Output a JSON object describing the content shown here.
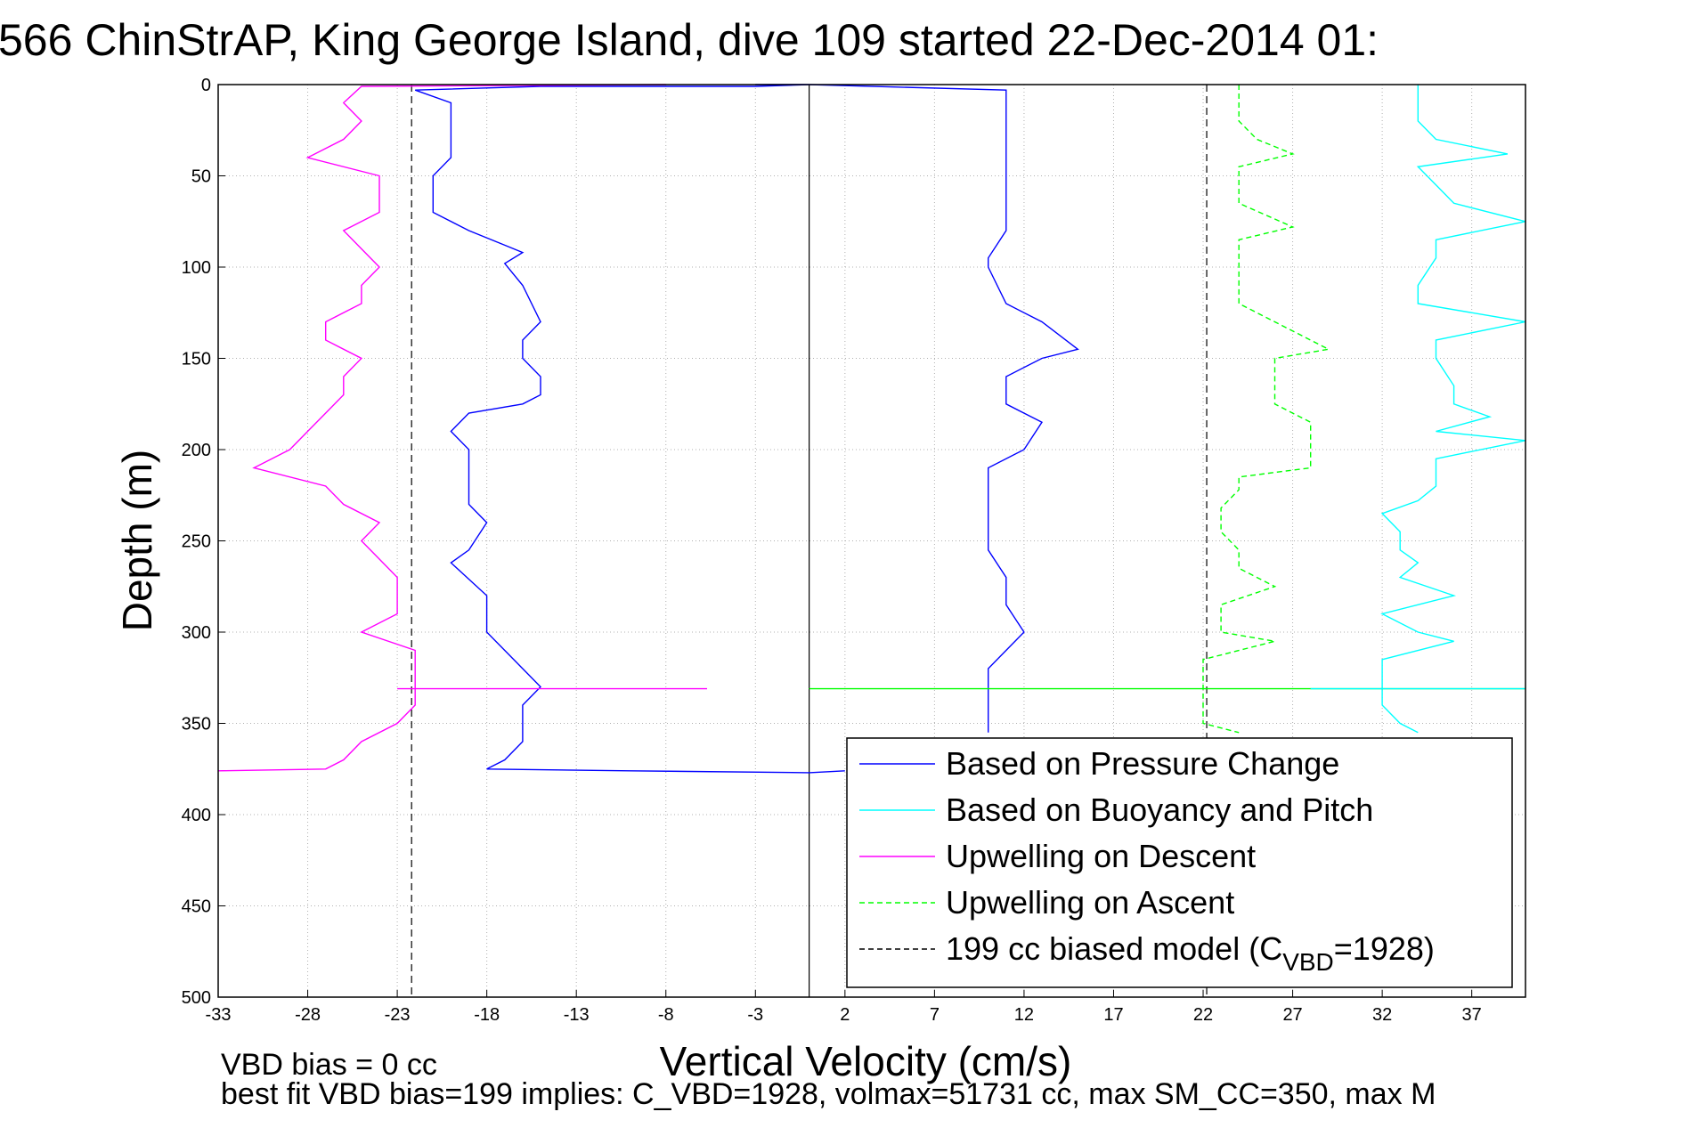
{
  "chart_data": {
    "type": "line",
    "title": "566 ChinStrAP, King George Island, dive 109 started 22-Dec-2014 01:",
    "xlabel": "Vertical Velocity (cm/s)",
    "ylabel": "Depth (m)",
    "xlim": [
      -33,
      40
    ],
    "ylim": [
      0,
      500
    ],
    "y_reversed": true,
    "grid": true,
    "x_ticks": [
      -33,
      -28,
      -23,
      -18,
      -13,
      -8,
      -3,
      2,
      7,
      12,
      17,
      22,
      27,
      32,
      37
    ],
    "y_ticks": [
      0,
      50,
      100,
      150,
      200,
      250,
      300,
      350,
      400,
      450,
      500
    ],
    "footer": {
      "line1": "VBD bias = 0 cc",
      "line2": "best fit VBD bias=199 implies: C_VBD=1928, volmax=51731 cc, max SM_CC=350, max M"
    },
    "legend": {
      "position": "bottom-right",
      "entries": [
        {
          "label": "Based on Pressure Change",
          "color": "#0000ff",
          "dash": "solid"
        },
        {
          "label": "Based on Buoyancy and Pitch",
          "color": "#00ffff",
          "dash": "solid"
        },
        {
          "label": "Upwelling on Descent",
          "color": "#ff00ff",
          "dash": "solid"
        },
        {
          "label": "Upwelling on Ascent",
          "color": "#00ff00",
          "dash": "dashed"
        },
        {
          "label": "199 cc biased model (C",
          "sub": "VBD",
          "suffix": "=1928)",
          "color": "#000000",
          "dash": "dashed"
        }
      ]
    },
    "reference_lines": [
      {
        "x": -22.2,
        "dash": "dashed",
        "color": "#000000"
      },
      {
        "x": 22.2,
        "dash": "dashed",
        "color": "#000000"
      },
      {
        "x": 0,
        "dash": "solid",
        "color": "#000000"
      }
    ],
    "series": [
      {
        "name": "Based on Pressure Change",
        "color": "#0000ff",
        "dash": "solid",
        "points": [
          [
            -3,
            0
          ],
          [
            0,
            0
          ],
          [
            -3,
            1
          ],
          [
            -15,
            1
          ],
          [
            -22,
            3
          ],
          [
            -20,
            10
          ],
          [
            -20,
            20
          ],
          [
            -20,
            30
          ],
          [
            -20,
            40
          ],
          [
            -21,
            50
          ],
          [
            -21,
            60
          ],
          [
            -21,
            70
          ],
          [
            -19,
            80
          ],
          [
            -17,
            88
          ],
          [
            -16,
            92
          ],
          [
            -17,
            98
          ],
          [
            -16,
            110
          ],
          [
            -15,
            130
          ],
          [
            -16,
            140
          ],
          [
            -16,
            150
          ],
          [
            -15,
            160
          ],
          [
            -15,
            170
          ],
          [
            -16,
            175
          ],
          [
            -19,
            180
          ],
          [
            -20,
            190
          ],
          [
            -19,
            200
          ],
          [
            -19,
            215
          ],
          [
            -19,
            230
          ],
          [
            -18,
            240
          ],
          [
            -19,
            255
          ],
          [
            -20,
            262
          ],
          [
            -18,
            280
          ],
          [
            -18,
            300
          ],
          [
            -16,
            320
          ],
          [
            -15,
            330
          ],
          [
            -16,
            340
          ],
          [
            -16,
            350
          ],
          [
            -16,
            360
          ],
          [
            -17,
            370
          ],
          [
            -18,
            375
          ],
          [
            -10,
            376
          ],
          [
            0,
            377
          ],
          [
            2,
            376
          ]
        ],
        "points_2": [
          [
            0,
            0
          ],
          [
            0,
            0
          ],
          [
            11,
            3
          ],
          [
            11,
            20
          ],
          [
            11,
            40
          ],
          [
            11,
            60
          ],
          [
            11,
            80
          ],
          [
            10,
            95
          ],
          [
            10,
            100
          ],
          [
            11,
            120
          ],
          [
            13,
            130
          ],
          [
            15,
            145
          ],
          [
            13,
            150
          ],
          [
            11,
            160
          ],
          [
            11,
            175
          ],
          [
            13,
            185
          ],
          [
            12,
            200
          ],
          [
            10,
            210
          ],
          [
            10,
            225
          ],
          [
            10,
            240
          ],
          [
            10,
            255
          ],
          [
            11,
            270
          ],
          [
            11,
            285
          ],
          [
            12,
            300
          ],
          [
            11,
            310
          ],
          [
            10,
            320
          ],
          [
            10,
            340
          ],
          [
            10,
            355
          ]
        ]
      },
      {
        "name": "Based on Buoyancy and Pitch",
        "color": "#00ffff",
        "dash": "solid",
        "points": [
          [
            34,
            0
          ],
          [
            34,
            10
          ],
          [
            34,
            20
          ],
          [
            35,
            30
          ],
          [
            39,
            38
          ],
          [
            34,
            45
          ],
          [
            35,
            55
          ],
          [
            36,
            65
          ],
          [
            40,
            75
          ],
          [
            35,
            85
          ],
          [
            35,
            95
          ],
          [
            34,
            110
          ],
          [
            34,
            120
          ],
          [
            40,
            130
          ],
          [
            35,
            140
          ],
          [
            35,
            150
          ],
          [
            36,
            165
          ],
          [
            36,
            175
          ],
          [
            38,
            182
          ],
          [
            35,
            190
          ],
          [
            40,
            195
          ],
          [
            35,
            205
          ],
          [
            35,
            212
          ],
          [
            35,
            220
          ],
          [
            34,
            228
          ],
          [
            32,
            235
          ],
          [
            33,
            245
          ],
          [
            33,
            255
          ],
          [
            34,
            262
          ],
          [
            33,
            270
          ],
          [
            36,
            280
          ],
          [
            32,
            290
          ],
          [
            34,
            300
          ],
          [
            36,
            305
          ],
          [
            32,
            315
          ],
          [
            32,
            320
          ],
          [
            32,
            330
          ],
          [
            32,
            340
          ],
          [
            33,
            350
          ],
          [
            34,
            355
          ]
        ]
      },
      {
        "name": "Upwelling on Descent",
        "color": "#ff00ff",
        "dash": "solid",
        "points": [
          [
            -8,
            0
          ],
          [
            -25,
            1
          ],
          [
            -26,
            10
          ],
          [
            -25,
            20
          ],
          [
            -26,
            30
          ],
          [
            -28,
            40
          ],
          [
            -24,
            50
          ],
          [
            -24,
            60
          ],
          [
            -24,
            70
          ],
          [
            -26,
            80
          ],
          [
            -25,
            90
          ],
          [
            -24,
            100
          ],
          [
            -25,
            110
          ],
          [
            -25,
            120
          ],
          [
            -27,
            130
          ],
          [
            -27,
            140
          ],
          [
            -25,
            150
          ],
          [
            -26,
            160
          ],
          [
            -26,
            170
          ],
          [
            -27,
            180
          ],
          [
            -28,
            190
          ],
          [
            -29,
            200
          ],
          [
            -31,
            210
          ],
          [
            -27,
            220
          ],
          [
            -26,
            230
          ],
          [
            -24,
            240
          ],
          [
            -25,
            250
          ],
          [
            -24,
            260
          ],
          [
            -23,
            270
          ],
          [
            -23,
            280
          ],
          [
            -23,
            290
          ],
          [
            -25,
            300
          ],
          [
            -22,
            310
          ],
          [
            -22,
            320
          ],
          [
            -22,
            330
          ],
          [
            -22,
            340
          ],
          [
            -23,
            350
          ],
          [
            -25,
            360
          ],
          [
            -26,
            370
          ],
          [
            -27,
            375
          ],
          [
            -33,
            376
          ]
        ]
      },
      {
        "name": "Upwelling on Ascent",
        "color": "#00ff00",
        "dash": "dashed",
        "points": [
          [
            24,
            0
          ],
          [
            24,
            10
          ],
          [
            24,
            20
          ],
          [
            25,
            30
          ],
          [
            27,
            38
          ],
          [
            24,
            45
          ],
          [
            24,
            55
          ],
          [
            24,
            65
          ],
          [
            27,
            78
          ],
          [
            24,
            85
          ],
          [
            24,
            95
          ],
          [
            24,
            110
          ],
          [
            24,
            120
          ],
          [
            26,
            130
          ],
          [
            29,
            145
          ],
          [
            26,
            150
          ],
          [
            26,
            165
          ],
          [
            26,
            175
          ],
          [
            28,
            185
          ],
          [
            28,
            200
          ],
          [
            28,
            210
          ],
          [
            24,
            215
          ],
          [
            24,
            222
          ],
          [
            23,
            232
          ],
          [
            23,
            245
          ],
          [
            24,
            255
          ],
          [
            24,
            265
          ],
          [
            26,
            275
          ],
          [
            23,
            285
          ],
          [
            23,
            300
          ],
          [
            26,
            305
          ],
          [
            22,
            315
          ],
          [
            22,
            330
          ],
          [
            22,
            340
          ],
          [
            22,
            350
          ],
          [
            24,
            355
          ]
        ]
      }
    ],
    "horizontal_spikes": [
      {
        "depth": 331,
        "x_from": -23,
        "x_to": -5.7,
        "color": "#ff00ff"
      },
      {
        "depth": 331,
        "x_from": 0,
        "x_to": 40,
        "color": "#00ff00"
      },
      {
        "depth": 331,
        "x_from": 28,
        "x_to": 40,
        "color": "#00ffff"
      }
    ]
  }
}
